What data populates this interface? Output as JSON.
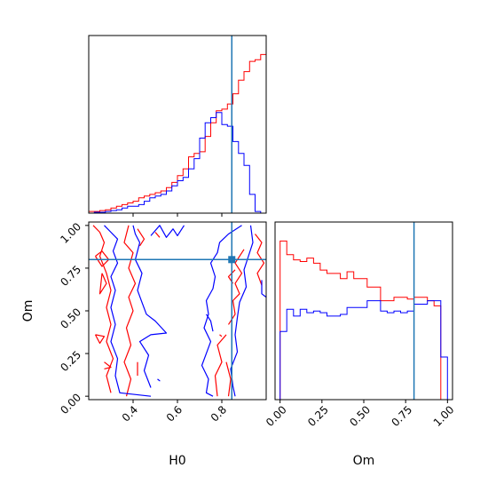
{
  "colors": {
    "red": "#ff0000",
    "blue": "#0000ff",
    "truth": "#1f77b4"
  },
  "chart_data": [
    {
      "type": "histogram",
      "panel": "H0 marginal",
      "xlim": [
        0.2,
        1.0
      ],
      "bin_edges": [
        0.2,
        0.225,
        0.25,
        0.275,
        0.3,
        0.325,
        0.35,
        0.375,
        0.4,
        0.425,
        0.45,
        0.475,
        0.5,
        0.525,
        0.55,
        0.575,
        0.6,
        0.625,
        0.65,
        0.675,
        0.7,
        0.725,
        0.75,
        0.775,
        0.8,
        0.825,
        0.85,
        0.875,
        0.9,
        0.925,
        0.95,
        0.975,
        1.0
      ],
      "series": [
        {
          "color": "red",
          "values": [
            0.01,
            0.01,
            0.015,
            0.02,
            0.03,
            0.04,
            0.05,
            0.06,
            0.07,
            0.09,
            0.1,
            0.11,
            0.12,
            0.13,
            0.15,
            0.18,
            0.22,
            0.26,
            0.33,
            0.35,
            0.36,
            0.45,
            0.53,
            0.6,
            0.61,
            0.64,
            0.7,
            0.78,
            0.83,
            0.89,
            0.9,
            0.93
          ]
        },
        {
          "color": "blue",
          "values": [
            0.0,
            0.005,
            0.005,
            0.01,
            0.015,
            0.02,
            0.03,
            0.04,
            0.04,
            0.05,
            0.07,
            0.09,
            0.1,
            0.11,
            0.13,
            0.16,
            0.19,
            0.21,
            0.26,
            0.32,
            0.44,
            0.53,
            0.56,
            0.59,
            0.52,
            0.51,
            0.42,
            0.35,
            0.28,
            0.11,
            0.01,
            0.0
          ]
        }
      ],
      "truth_x": 0.845
    },
    {
      "type": "contour",
      "panel": "H0 vs Om",
      "xlabel": "H0",
      "ylabel": "Om",
      "xlim": [
        0.2,
        1.0
      ],
      "ylim": [
        -0.02,
        1.02
      ],
      "xticks": [
        "0.4",
        "0.6",
        "0.8"
      ],
      "yticks": [
        "0.00",
        "0.25",
        "0.50",
        "0.75",
        "1.00"
      ],
      "truth": [
        0.845,
        0.8
      ]
    },
    {
      "type": "histogram",
      "panel": "Om marginal",
      "xlabel": "Om",
      "xlim": [
        -0.03,
        1.03
      ],
      "xticks": [
        "0.00",
        "0.25",
        "0.50",
        "0.75",
        "1.00"
      ],
      "bin_edges": [
        0.0,
        0.04,
        0.08,
        0.12,
        0.16,
        0.2,
        0.24,
        0.28,
        0.32,
        0.36,
        0.4,
        0.44,
        0.48,
        0.52,
        0.56,
        0.6,
        0.64,
        0.68,
        0.72,
        0.76,
        0.8,
        0.84,
        0.88,
        0.92,
        0.96,
        1.0
      ],
      "series": [
        {
          "color": "red",
          "values": [
            0.93,
            0.85,
            0.82,
            0.81,
            0.83,
            0.8,
            0.76,
            0.74,
            0.74,
            0.71,
            0.75,
            0.71,
            0.71,
            0.66,
            0.66,
            0.58,
            0.58,
            0.6,
            0.6,
            0.59,
            0.6,
            0.6,
            0.58,
            0.55,
            0.0
          ]
        },
        {
          "color": "blue",
          "values": [
            0.4,
            0.53,
            0.49,
            0.53,
            0.51,
            0.52,
            0.51,
            0.49,
            0.49,
            0.5,
            0.54,
            0.54,
            0.54,
            0.58,
            0.58,
            0.52,
            0.51,
            0.52,
            0.51,
            0.52,
            0.56,
            0.56,
            0.58,
            0.58,
            0.25
          ]
        }
      ],
      "truth_x": 0.8
    }
  ]
}
